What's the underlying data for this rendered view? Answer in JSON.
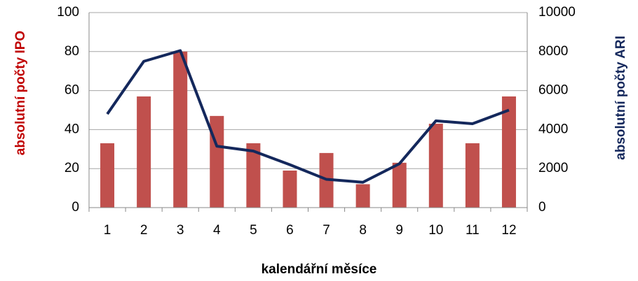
{
  "chart_data": {
    "type": "bar_line",
    "x_label": "kalendářní měsíce",
    "y_label": "absolutní počty IPO",
    "y2_label": "absolutní počty ARI",
    "categories": [
      "1",
      "2",
      "3",
      "4",
      "5",
      "6",
      "7",
      "8",
      "9",
      "10",
      "11",
      "12"
    ],
    "series": [
      {
        "name": "absolutní počty IPO",
        "type": "bar",
        "color": "#c0504d",
        "axis": "y",
        "values": [
          33,
          57,
          80,
          47,
          33,
          19,
          28,
          12,
          23,
          43,
          33,
          57
        ]
      },
      {
        "name": "absolutní počty ARI",
        "type": "line",
        "color": "#14285c",
        "axis": "y2",
        "values": [
          4800,
          7500,
          8050,
          3150,
          2900,
          2200,
          1450,
          1300,
          2250,
          4450,
          4300,
          5000
        ]
      }
    ],
    "ylim": [
      0,
      100
    ],
    "yticks": [
      0,
      20,
      40,
      60,
      80,
      100
    ],
    "y2lim": [
      0,
      10000
    ],
    "y2ticks": [
      0,
      2000,
      4000,
      6000,
      8000,
      10000
    ],
    "grid": true
  }
}
